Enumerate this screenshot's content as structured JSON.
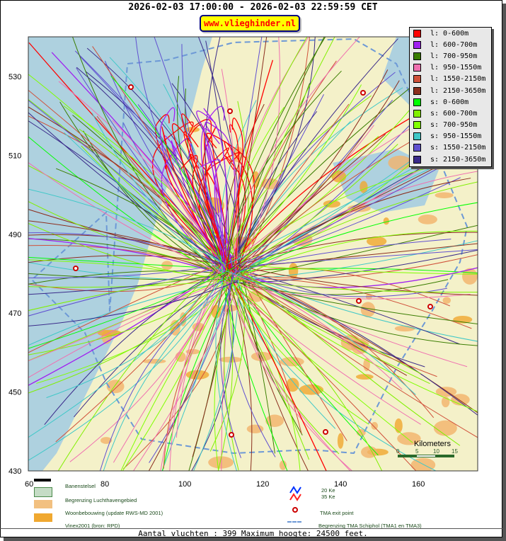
{
  "header": {
    "title": "2026-02-03 17:00:00 - 2026-02-03 22:59:59 CET",
    "badge": "www.vlieghinder.nl"
  },
  "axes": {
    "x_ticks": [
      "60",
      "80",
      "100",
      "120",
      "140",
      "160"
    ],
    "y_ticks": [
      "530",
      "510",
      "490",
      "470",
      "450",
      "430"
    ]
  },
  "colors": {
    "water": "#aed1df",
    "land": "#f4f1c9",
    "urban": "#f2b36a",
    "tma_boundary": "#6d99d6",
    "exit_point": "#cc0000"
  },
  "legend": [
    {
      "label": "l: 0-600m",
      "color": "#ff0000"
    },
    {
      "label": "l: 600-700m",
      "color": "#a020f0"
    },
    {
      "label": "l: 700-950m",
      "color": "#3a7d00"
    },
    {
      "label": "l: 950-1550m",
      "color": "#f070b0"
    },
    {
      "label": "l: 1550-2150m",
      "color": "#d0503a"
    },
    {
      "label": "l: 2150-3650m",
      "color": "#8b2e1e"
    },
    {
      "label": "s: 0-600m",
      "color": "#00ff00"
    },
    {
      "label": "s: 600-700m",
      "color": "#80f000"
    },
    {
      "label": "s: 700-950m",
      "color": "#80ff00"
    },
    {
      "label": "s: 950-1550m",
      "color": "#40c8c8"
    },
    {
      "label": "s: 1550-2150m",
      "color": "#6050d0"
    },
    {
      "label": "s: 2150-3650m",
      "color": "#3a2a8a"
    }
  ],
  "scale": {
    "title": "Kilometers",
    "labels": [
      "0",
      "5",
      "10",
      "15"
    ]
  },
  "map_legend": {
    "runways": "Banenstelsel",
    "airport_boundary": "Begrenzing Luchthavengebied",
    "housing": "Woonbebouwing (update RWS-MD 2001)",
    "vinex": "Vinex2001 (bron: RPD)",
    "ke20": "20 Ke",
    "ke35": "35 Ke",
    "exit_point": "TMA exit point",
    "tma": "Begrenzing TMA Schiphol  (TMA1 en TMA3)"
  },
  "footer": "Aantal vluchten : 399 Maximum hoogte: 24500 feet."
}
